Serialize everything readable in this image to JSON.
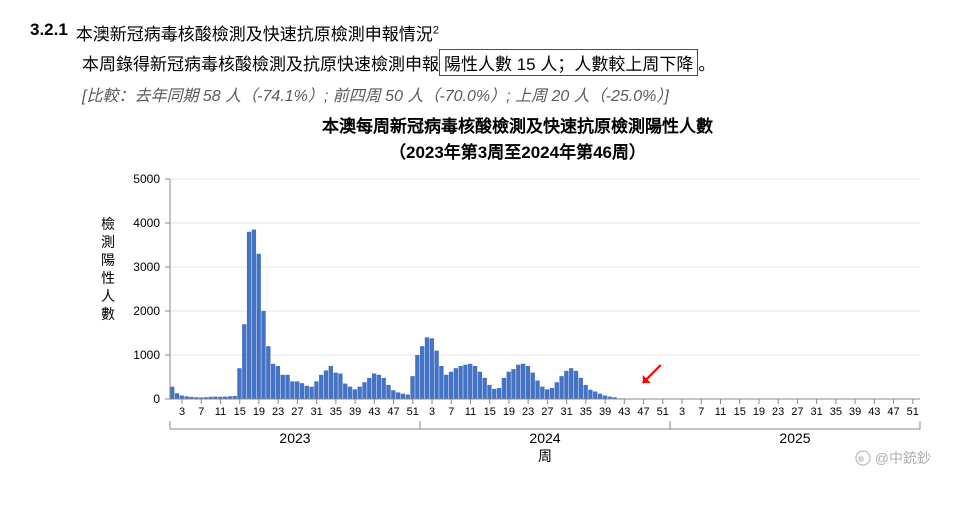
{
  "section": {
    "number": "3.2.1",
    "title": "本澳新冠病毒核酸檢測及快速抗原檢測申報情況",
    "superscript": "2"
  },
  "body": {
    "prefix": "本周錄得新冠病毒核酸檢測及抗原快速檢測申報",
    "highlight": "陽性人數 15 人；人數較上周下降",
    "suffix": "。"
  },
  "compare": "[比較：去年同期 58 人（-74.1%）; 前四周 50 人（-70.0%）; 上周 20 人（-25.0%）]",
  "chart": {
    "type": "bar",
    "title_line1": "本澳每周新冠病毒核酸檢測及快速抗原檢測陽性人數",
    "title_line2": "（2023年第3周至2024年第46周）",
    "ylabel": "檢測陽性人數",
    "xlabel": "周",
    "ylim": [
      0,
      5000
    ],
    "ytick_step": 1000,
    "bar_color": "#4472c4",
    "grid_color": "#cccccc",
    "axis_color": "#888888",
    "background_color": "#ffffff",
    "arrow_color": "#ff0000",
    "title_fontsize": 17,
    "label_fontsize": 14,
    "tick_fontsize": 12,
    "year_groups": [
      {
        "label": "2023",
        "ticks": [
          "3",
          "7",
          "11",
          "15",
          "19",
          "23",
          "27",
          "31",
          "35",
          "39",
          "43",
          "47",
          "51"
        ]
      },
      {
        "label": "2024",
        "ticks": [
          "3",
          "7",
          "11",
          "15",
          "19",
          "23",
          "27",
          "31",
          "35",
          "39",
          "43",
          "47",
          "51"
        ]
      },
      {
        "label": "2025",
        "ticks": [
          "3",
          "7",
          "11",
          "15",
          "19",
          "23",
          "27",
          "31",
          "35",
          "39",
          "43",
          "47",
          "51"
        ]
      }
    ],
    "arrow_position_week": 46,
    "values": [
      280,
      130,
      80,
      60,
      50,
      40,
      35,
      40,
      50,
      55,
      50,
      55,
      60,
      70,
      700,
      1700,
      3800,
      3850,
      3300,
      2000,
      1200,
      800,
      750,
      550,
      550,
      400,
      400,
      360,
      300,
      280,
      400,
      550,
      650,
      750,
      600,
      580,
      350,
      280,
      220,
      280,
      380,
      480,
      580,
      550,
      480,
      320,
      200,
      150,
      120,
      100,
      520,
      1000,
      1200,
      1400,
      1380,
      1100,
      750,
      550,
      620,
      700,
      750,
      780,
      800,
      750,
      620,
      480,
      320,
      230,
      250,
      480,
      620,
      680,
      780,
      800,
      750,
      600,
      420,
      280,
      220,
      250,
      380,
      520,
      640,
      700,
      640,
      480,
      320,
      210,
      170,
      120,
      80,
      55,
      40,
      15
    ]
  },
  "watermark": {
    "text": "@中銃鈔"
  }
}
